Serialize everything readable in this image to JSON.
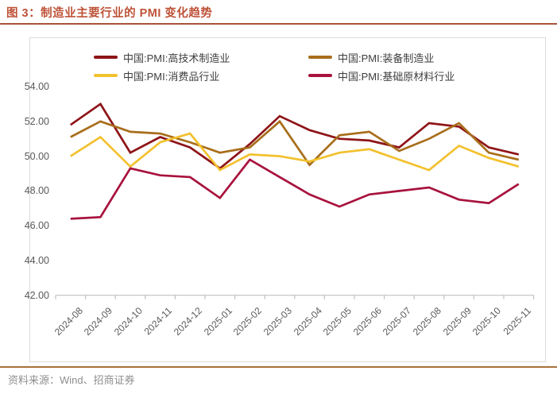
{
  "title": {
    "text": "图 3：制造业主要行业的 PMI 变化趋势"
  },
  "footer": {
    "text": "资料来源：Wind、招商证券"
  },
  "colors": {
    "title_text": "#BE5238",
    "title_rule": "#A8543A",
    "footer_rule": "#A9713C",
    "footer_text": "#8E8E8E",
    "axis_text": "#595959",
    "axis_line": "#C0C0C0",
    "panel_border": "#DCDCDC"
  },
  "chart_data": {
    "type": "line",
    "title": "制造业主要行业的 PMI 变化趋势",
    "xlabel": "",
    "ylabel": "",
    "ylim": [
      42,
      54
    ],
    "grid": false,
    "legend_position": "top-inside-two-columns",
    "y_axis": {
      "tick_values": [
        54,
        52,
        50,
        48,
        46,
        44,
        42
      ],
      "tick_labels": [
        "54.00",
        "52.00",
        "50.00",
        "48.00",
        "46.00",
        "44.00",
        "42.00"
      ]
    },
    "categories": [
      "2024-08",
      "2024-09",
      "2024-10",
      "2024-11",
      "2024-12",
      "2025-01",
      "2025-02",
      "2025-03",
      "2025-04",
      "2025-05",
      "2025-06",
      "2025-07",
      "2025-08",
      "2025-09",
      "2025-10",
      "2025-11"
    ],
    "series": [
      {
        "name": "中国:PMI:高技术制造业",
        "color": "#8E1418",
        "values": [
          51.8,
          53.0,
          50.2,
          51.1,
          50.5,
          49.3,
          50.7,
          52.3,
          51.5,
          51.0,
          50.9,
          50.5,
          51.9,
          51.7,
          50.5,
          50.1
        ]
      },
      {
        "name": "中国:PMI:装备制造业",
        "color": "#A86E1B",
        "values": [
          51.1,
          52.0,
          51.4,
          51.3,
          50.8,
          50.2,
          50.5,
          52.0,
          49.5,
          51.2,
          51.4,
          50.3,
          51.0,
          51.9,
          50.2,
          49.8
        ]
      },
      {
        "name": "中国:PMI:消费品行业",
        "color": "#F2C12E",
        "values": [
          50.0,
          51.1,
          49.4,
          50.8,
          51.3,
          49.2,
          50.1,
          50.0,
          49.7,
          50.2,
          50.4,
          49.8,
          49.2,
          50.6,
          49.9,
          49.4
        ]
      },
      {
        "name": "中国:PMI:基础原材料行业",
        "color": "#A8123D",
        "values": [
          46.4,
          46.5,
          49.3,
          48.9,
          48.8,
          47.6,
          49.8,
          48.8,
          47.8,
          47.1,
          47.8,
          48.0,
          48.2,
          47.5,
          47.3,
          48.4
        ]
      }
    ]
  }
}
